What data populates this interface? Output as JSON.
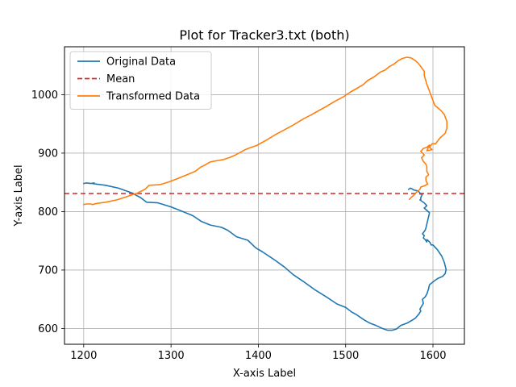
{
  "chart_data": {
    "type": "line",
    "title": "Plot for Tracker3.txt (both)",
    "xlabel": "X-axis Label",
    "ylabel": "Y-axis Label",
    "xlim": [
      1178,
      1636
    ],
    "ylim": [
      573,
      1082
    ],
    "xticks": [
      1200,
      1300,
      1400,
      1500,
      1600
    ],
    "yticks": [
      600,
      700,
      800,
      900,
      1000
    ],
    "grid": true,
    "legend": "top-left",
    "series": [
      {
        "name": "Original Data",
        "color": "#1f77b4",
        "style": "solid",
        "x": [
          1200,
          1203,
          1208,
          1212,
          1210,
          1215,
          1225,
          1240,
          1255,
          1265,
          1272,
          1285,
          1300,
          1312,
          1325,
          1335,
          1345,
          1358,
          1365,
          1375,
          1388,
          1397,
          1405,
          1418,
          1430,
          1440,
          1452,
          1465,
          1478,
          1490,
          1500,
          1507,
          1512,
          1517,
          1522,
          1528,
          1535,
          1542,
          1548,
          1553,
          1558,
          1563,
          1570,
          1576,
          1580,
          1584,
          1586,
          1585,
          1587,
          1589,
          1588,
          1591,
          1593,
          1595,
          1596,
          1602,
          1606,
          1611,
          1614,
          1615,
          1613,
          1610,
          1605,
          1600,
          1598,
          1597,
          1596,
          1594,
          1593,
          1593,
          1591,
          1589,
          1590,
          1588,
          1591,
          1592,
          1596,
          1590,
          1593,
          1590,
          1588,
          1585,
          1586,
          1586,
          1588,
          1586,
          1585,
          1585,
          1585,
          1583,
          1581,
          1578,
          1576,
          1574,
          1572
        ],
        "y": [
          848,
          849,
          848,
          849,
          848,
          847,
          845,
          840,
          832,
          824,
          816,
          815,
          808,
          801,
          793,
          783,
          777,
          773,
          768,
          757,
          751,
          738,
          731,
          718,
          705,
          692,
          680,
          666,
          654,
          642,
          636,
          628,
          624,
          619,
          614,
          609,
          605,
          600,
          597,
          597,
          599,
          605,
          609,
          614,
          618,
          625,
          630,
          633,
          638,
          643,
          650,
          654,
          659,
          668,
          675,
          682,
          686,
          689,
          694,
          701,
          713,
          724,
          735,
          743,
          743,
          746,
          748,
          751,
          752,
          748,
          752,
          755,
          759,
          762,
          768,
          772,
          798,
          806,
          810,
          815,
          817,
          820,
          820,
          824,
          830,
          830,
          830,
          831,
          832,
          835,
          836,
          837,
          839,
          840,
          838
        ]
      },
      {
        "name": "Mean",
        "color": "#d62728",
        "style": "dashed",
        "x": [
          1178,
          1636
        ],
        "y": [
          831,
          831
        ]
      },
      {
        "name": "Transformed Data",
        "color": "#ff7f0e",
        "style": "solid",
        "x": [
          1200,
          1203,
          1208,
          1210,
          1215,
          1225,
          1238,
          1250,
          1262,
          1270,
          1275,
          1287,
          1298,
          1310,
          1320,
          1328,
          1334,
          1338,
          1345,
          1352,
          1360,
          1368,
          1374,
          1385,
          1390,
          1398,
          1410,
          1420,
          1430,
          1440,
          1452,
          1460,
          1467,
          1478,
          1488,
          1497,
          1505,
          1513,
          1520,
          1525,
          1533,
          1540,
          1545,
          1550,
          1555,
          1560,
          1565,
          1570,
          1575,
          1580,
          1583,
          1586,
          1590,
          1590,
          1593,
          1602,
          1609,
          1613,
          1616,
          1616,
          1614,
          1608,
          1603,
          1599,
          1596,
          1599,
          1593,
          1596,
          1593,
          1589,
          1586,
          1590,
          1587,
          1589,
          1592,
          1593,
          1593,
          1595,
          1592,
          1592,
          1594,
          1590,
          1586,
          1585,
          1581,
          1578,
          1575,
          1573
        ],
        "y": [
          812,
          813,
          813,
          812,
          814,
          816,
          820,
          826,
          832,
          838,
          845,
          846,
          851,
          858,
          864,
          869,
          876,
          879,
          885,
          887,
          889,
          893,
          897,
          906,
          909,
          913,
          923,
          932,
          940,
          948,
          959,
          965,
          971,
          980,
          989,
          996,
          1004,
          1011,
          1017,
          1024,
          1031,
          1039,
          1042,
          1048,
          1052,
          1058,
          1062,
          1064,
          1063,
          1058,
          1054,
          1048,
          1040,
          1033,
          1018,
          982,
          973,
          966,
          954,
          943,
          934,
          926,
          916,
          916,
          910,
          906,
          904,
          914,
          910,
          908,
          903,
          897,
          892,
          886,
          881,
          876,
          869,
          863,
          859,
          853,
          847,
          844,
          842,
          838,
          833,
          828,
          824,
          821
        ]
      }
    ]
  }
}
